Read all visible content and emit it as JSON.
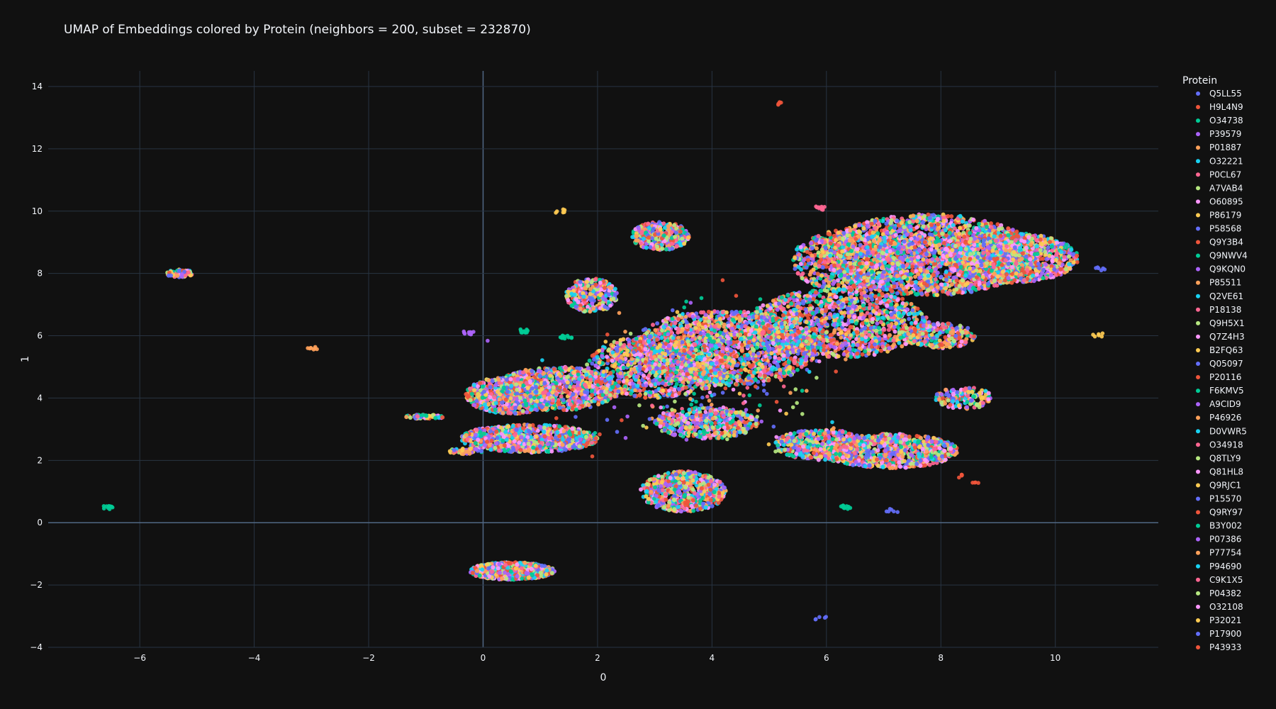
{
  "chart_data": {
    "type": "scatter",
    "title": "UMAP of Embeddings colored by Protein (neighbors = 200, subset = 232870)",
    "xlabel": "0",
    "ylabel": "1",
    "xlim": [
      -7.6,
      11.8
    ],
    "ylim": [
      -4.0,
      14.5
    ],
    "x_ticks": [
      -6,
      -4,
      -2,
      0,
      2,
      4,
      6,
      8,
      10
    ],
    "y_ticks": [
      -4,
      -2,
      0,
      2,
      4,
      6,
      8,
      10,
      12,
      14
    ],
    "grid": true,
    "background": "#111111",
    "grid_color": "#283442",
    "zeroline_color": "#506784",
    "legend": {
      "title": "Protein",
      "placement": "right",
      "entries": [
        {
          "name": "Q5LL55",
          "color": "#636efa"
        },
        {
          "name": "H9L4N9",
          "color": "#EF553B"
        },
        {
          "name": "O34738",
          "color": "#00cc96"
        },
        {
          "name": "P39579",
          "color": "#ab63fa"
        },
        {
          "name": "P01887",
          "color": "#FFA15A"
        },
        {
          "name": "O32221",
          "color": "#19d3f3"
        },
        {
          "name": "P0CL67",
          "color": "#FF6692"
        },
        {
          "name": "A7VAB4",
          "color": "#B6E880"
        },
        {
          "name": "O60895",
          "color": "#FF97FF"
        },
        {
          "name": "P86179",
          "color": "#FECB52"
        },
        {
          "name": "P58568",
          "color": "#636efa"
        },
        {
          "name": "Q9Y3B4",
          "color": "#EF553B"
        },
        {
          "name": "Q9NWV4",
          "color": "#00cc96"
        },
        {
          "name": "Q9KQN0",
          "color": "#ab63fa"
        },
        {
          "name": "P85511",
          "color": "#FFA15A"
        },
        {
          "name": "Q2VE61",
          "color": "#19d3f3"
        },
        {
          "name": "P18138",
          "color": "#FF6692"
        },
        {
          "name": "Q9H5X1",
          "color": "#B6E880"
        },
        {
          "name": "Q7Z4H3",
          "color": "#FF97FF"
        },
        {
          "name": "B2FQ63",
          "color": "#FECB52"
        },
        {
          "name": "Q05097",
          "color": "#636efa"
        },
        {
          "name": "P20116",
          "color": "#EF553B"
        },
        {
          "name": "F6KMV5",
          "color": "#00cc96"
        },
        {
          "name": "A9CID9",
          "color": "#ab63fa"
        },
        {
          "name": "P46926",
          "color": "#FFA15A"
        },
        {
          "name": "D0VWR5",
          "color": "#19d3f3"
        },
        {
          "name": "O34918",
          "color": "#FF6692"
        },
        {
          "name": "Q8TLY9",
          "color": "#B6E880"
        },
        {
          "name": "Q81HL8",
          "color": "#FF97FF"
        },
        {
          "name": "Q9RJC1",
          "color": "#FECB52"
        },
        {
          "name": "P15570",
          "color": "#636efa"
        },
        {
          "name": "Q9RY97",
          "color": "#EF553B"
        },
        {
          "name": "B3Y002",
          "color": "#00cc96"
        },
        {
          "name": "P07386",
          "color": "#ab63fa"
        },
        {
          "name": "P77754",
          "color": "#FFA15A"
        },
        {
          "name": "P94690",
          "color": "#19d3f3"
        },
        {
          "name": "C9K1X5",
          "color": "#FF6692"
        },
        {
          "name": "P04382",
          "color": "#B6E880"
        },
        {
          "name": "O32108",
          "color": "#FF97FF"
        },
        {
          "name": "P32021",
          "color": "#FECB52"
        },
        {
          "name": "P17900",
          "color": "#636efa"
        },
        {
          "name": "P43933",
          "color": "#EF553B"
        }
      ]
    },
    "clusters": [
      {
        "cx": 7.8,
        "cy": 8.6,
        "rx": 1.9,
        "ry": 1.3,
        "n": 2200
      },
      {
        "cx": 9.2,
        "cy": 8.5,
        "rx": 1.2,
        "ry": 0.8,
        "n": 1100
      },
      {
        "cx": 6.4,
        "cy": 8.4,
        "rx": 1.0,
        "ry": 1.0,
        "n": 700
      },
      {
        "cx": 6.2,
        "cy": 6.4,
        "rx": 1.6,
        "ry": 1.1,
        "n": 1300
      },
      {
        "cx": 4.2,
        "cy": 5.6,
        "rx": 1.6,
        "ry": 1.2,
        "n": 1600
      },
      {
        "cx": 3.0,
        "cy": 5.0,
        "rx": 1.2,
        "ry": 1.0,
        "n": 800
      },
      {
        "cx": 1.3,
        "cy": 4.3,
        "rx": 1.1,
        "ry": 0.7,
        "n": 900
      },
      {
        "cx": 0.5,
        "cy": 4.1,
        "rx": 0.8,
        "ry": 0.6,
        "n": 700
      },
      {
        "cx": 0.8,
        "cy": 2.7,
        "rx": 1.2,
        "ry": 0.45,
        "n": 900
      },
      {
        "cx": 7.1,
        "cy": 2.3,
        "rx": 1.2,
        "ry": 0.55,
        "n": 900
      },
      {
        "cx": 5.9,
        "cy": 2.5,
        "rx": 0.8,
        "ry": 0.5,
        "n": 500
      },
      {
        "cx": 3.5,
        "cy": 1.0,
        "rx": 0.75,
        "ry": 0.65,
        "n": 650
      },
      {
        "cx": 3.9,
        "cy": 3.2,
        "rx": 0.9,
        "ry": 0.5,
        "n": 500
      },
      {
        "cx": 3.1,
        "cy": 9.2,
        "rx": 0.5,
        "ry": 0.45,
        "n": 350
      },
      {
        "cx": 1.9,
        "cy": 7.3,
        "rx": 0.45,
        "ry": 0.55,
        "n": 300
      },
      {
        "cx": 0.5,
        "cy": -1.55,
        "rx": 0.75,
        "ry": 0.28,
        "n": 700
      },
      {
        "cx": 8.4,
        "cy": 4.0,
        "rx": 0.5,
        "ry": 0.35,
        "n": 150
      },
      {
        "cx": 8.0,
        "cy": 6.0,
        "rx": 0.6,
        "ry": 0.4,
        "n": 250
      },
      {
        "cx": -5.3,
        "cy": 8.0,
        "rx": 0.25,
        "ry": 0.12,
        "n": 80
      },
      {
        "cx": -1.0,
        "cy": 3.4,
        "rx": 0.35,
        "ry": 0.07,
        "n": 60
      },
      {
        "cx": -0.3,
        "cy": 2.3,
        "rx": 0.3,
        "ry": 0.1,
        "n": 40
      }
    ],
    "isolated_groups": [
      {
        "x": -6.55,
        "y": 0.48,
        "color": "#00cc96",
        "n": 10
      },
      {
        "x": -3.0,
        "y": 5.6,
        "color": "#FFA15A",
        "n": 8
      },
      {
        "x": 5.12,
        "y": 13.45,
        "color": "#EF553B",
        "n": 5
      },
      {
        "x": 5.9,
        "y": -3.05,
        "color": "#636efa",
        "n": 5
      },
      {
        "x": 10.75,
        "y": 6.02,
        "color": "#FECB52",
        "n": 6
      },
      {
        "x": 1.35,
        "y": 10.0,
        "color": "#FECB52",
        "n": 6
      },
      {
        "x": -0.25,
        "y": 6.1,
        "color": "#ab63fa",
        "n": 10
      },
      {
        "x": 0.75,
        "y": 6.15,
        "color": "#00cc96",
        "n": 10
      },
      {
        "x": 1.45,
        "y": 5.95,
        "color": "#00cc96",
        "n": 14
      },
      {
        "x": 5.9,
        "y": 10.1,
        "color": "#FF6692",
        "n": 10
      },
      {
        "x": 6.35,
        "y": 0.5,
        "color": "#00cc96",
        "n": 10
      },
      {
        "x": 7.15,
        "y": 0.4,
        "color": "#636efa",
        "n": 6
      },
      {
        "x": 8.35,
        "y": 1.5,
        "color": "#EF553B",
        "n": 5
      },
      {
        "x": 8.6,
        "y": 1.25,
        "color": "#EF553B",
        "n": 4
      },
      {
        "x": 10.8,
        "y": 8.15,
        "color": "#636efa",
        "n": 6
      }
    ]
  }
}
